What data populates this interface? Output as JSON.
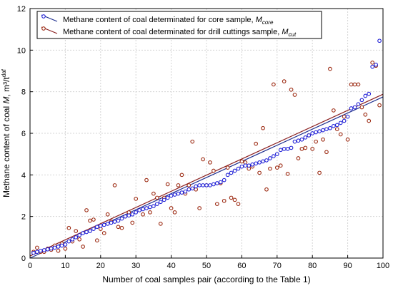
{
  "chart_data": {
    "type": "scatter",
    "title": "",
    "xlabel": "Number of coal samples pair (according to the Table 1)",
    "ylabel": "Methane content of coal M, m³/t",
    "ylabel_parts": {
      "main": "Methane content of coal ",
      "italic": "M",
      "rest": ", m³/t",
      "sup": "daf"
    },
    "xlim": [
      0,
      100
    ],
    "ylim": [
      0,
      12
    ],
    "xticks": [
      0,
      10,
      20,
      30,
      40,
      50,
      60,
      70,
      80,
      90,
      100
    ],
    "yticks": [
      0,
      2,
      4,
      6,
      8,
      10,
      12
    ],
    "grid": true,
    "legend_position": "top-left",
    "series": [
      {
        "name": "Methane content of coal determinated for core sample, Mcore",
        "label_main": "Methane content of coal determinated for core sample, ",
        "label_italic": "M",
        "label_sub": "core",
        "color": "#1f1fd6",
        "fit_color": "#1f2f8f",
        "x": [
          1,
          2,
          3,
          4,
          5,
          6,
          7,
          8,
          9,
          10,
          11,
          12,
          13,
          14,
          15,
          16,
          17,
          18,
          19,
          20,
          21,
          22,
          23,
          24,
          25,
          26,
          27,
          28,
          29,
          30,
          31,
          32,
          33,
          34,
          35,
          36,
          37,
          38,
          39,
          40,
          41,
          42,
          43,
          44,
          45,
          46,
          47,
          48,
          49,
          50,
          51,
          52,
          53,
          54,
          55,
          56,
          57,
          58,
          59,
          60,
          61,
          62,
          63,
          64,
          65,
          66,
          67,
          68,
          69,
          70,
          71,
          72,
          73,
          74,
          75,
          76,
          77,
          78,
          79,
          80,
          81,
          82,
          83,
          84,
          85,
          86,
          87,
          88,
          89,
          90,
          91,
          92,
          93,
          94,
          95,
          96,
          97,
          98,
          99
        ],
        "y": [
          0.25,
          0.3,
          0.35,
          0.38,
          0.42,
          0.46,
          0.5,
          0.55,
          0.6,
          0.65,
          0.8,
          0.9,
          1.0,
          1.1,
          1.2,
          1.25,
          1.3,
          1.4,
          1.5,
          1.55,
          1.6,
          1.65,
          1.7,
          1.75,
          1.8,
          1.9,
          2.0,
          2.05,
          2.1,
          2.2,
          2.3,
          2.35,
          2.4,
          2.45,
          2.5,
          2.6,
          2.7,
          2.8,
          2.9,
          3.0,
          3.05,
          3.1,
          3.15,
          3.2,
          3.3,
          3.35,
          3.45,
          3.5,
          3.5,
          3.5,
          3.5,
          3.55,
          3.6,
          3.65,
          3.75,
          4.0,
          4.1,
          4.2,
          4.3,
          4.4,
          4.45,
          4.45,
          4.5,
          4.55,
          4.6,
          4.65,
          4.7,
          4.8,
          4.9,
          5.0,
          5.2,
          5.25,
          5.25,
          5.3,
          5.6,
          5.65,
          5.7,
          5.8,
          5.9,
          6.0,
          6.05,
          6.1,
          6.15,
          6.2,
          6.25,
          6.35,
          6.4,
          6.5,
          6.6,
          6.8,
          7.2,
          7.25,
          7.4,
          7.6,
          7.8,
          7.9,
          9.2,
          9.3,
          10.45
        ],
        "fit": {
          "slope": 0.0775,
          "intercept": 0.0
        }
      },
      {
        "name": "Methane content of coal determinated for drill cuttings sample, Mcut",
        "label_main": "Methane content of coal determinated for drill cuttings sample, ",
        "label_italic": "M",
        "label_sub": "cut",
        "color": "#9c2a12",
        "fit_color": "#8a1f1f",
        "x": [
          1,
          2,
          3,
          4,
          5,
          6,
          7,
          8,
          9,
          10,
          11,
          12,
          13,
          14,
          15,
          16,
          17,
          18,
          19,
          20,
          21,
          22,
          23,
          24,
          25,
          26,
          27,
          28,
          29,
          30,
          31,
          32,
          33,
          34,
          35,
          36,
          37,
          38,
          39,
          40,
          41,
          42,
          43,
          44,
          45,
          46,
          47,
          48,
          49,
          50,
          51,
          52,
          53,
          54,
          55,
          56,
          57,
          58,
          59,
          60,
          61,
          62,
          63,
          64,
          65,
          66,
          67,
          68,
          69,
          70,
          71,
          72,
          73,
          74,
          75,
          76,
          77,
          78,
          79,
          80,
          81,
          82,
          83,
          84,
          85,
          86,
          87,
          88,
          89,
          90,
          91,
          92,
          93,
          94,
          95,
          96,
          97,
          98,
          99
        ],
        "y": [
          0.3,
          0.5,
          0.3,
          0.3,
          0.45,
          0.4,
          0.6,
          0.35,
          0.7,
          0.45,
          1.45,
          0.8,
          1.3,
          0.9,
          0.55,
          2.3,
          1.8,
          1.85,
          0.85,
          1.4,
          1.2,
          2.1,
          1.75,
          3.5,
          1.5,
          1.45,
          2.0,
          2.2,
          1.7,
          2.85,
          2.3,
          2.1,
          3.75,
          2.2,
          3.1,
          2.9,
          1.65,
          2.9,
          3.55,
          2.4,
          2.2,
          3.5,
          4.0,
          3.1,
          3.5,
          5.6,
          3.3,
          2.4,
          4.75,
          3.5,
          4.6,
          4.2,
          2.6,
          3.6,
          2.75,
          4.35,
          2.9,
          2.8,
          2.6,
          4.65,
          4.6,
          4.3,
          4.4,
          5.5,
          4.1,
          6.25,
          3.3,
          4.3,
          8.35,
          4.35,
          4.45,
          8.5,
          4.05,
          8.1,
          7.85,
          4.8,
          5.25,
          5.3,
          5.9,
          5.25,
          5.6,
          4.1,
          5.7,
          5.1,
          9.1,
          7.1,
          6.2,
          5.95,
          6.8,
          5.7,
          8.35,
          8.35,
          8.35,
          7.25,
          6.9,
          6.6,
          9.4,
          9.25,
          7.35
        ],
        "fit": {
          "slope": 0.0778,
          "intercept": 0.1
        }
      }
    ]
  }
}
